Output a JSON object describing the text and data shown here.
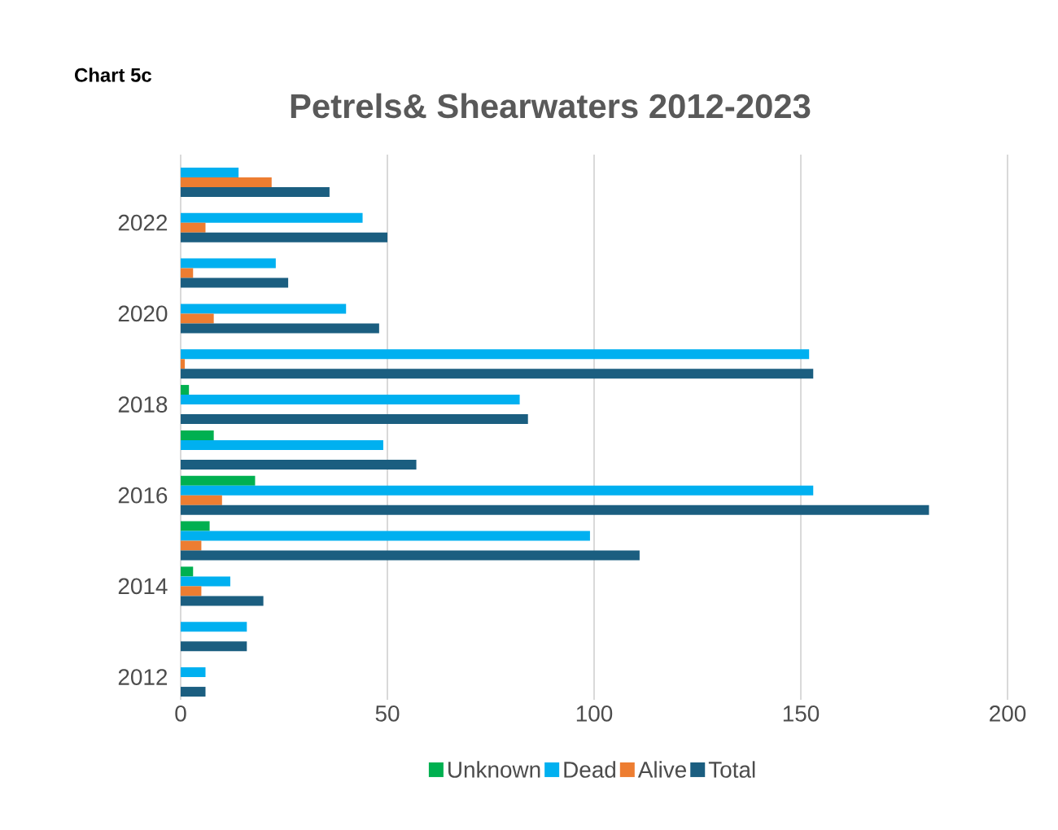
{
  "chart_data": {
    "type": "bar",
    "orientation": "horizontal",
    "title": "Petrels& Shearwaters 2012-2023",
    "annotations": [
      "Chart 5c"
    ],
    "categories": [
      null,
      "2022",
      null,
      "2020",
      null,
      "2018",
      null,
      "2016",
      null,
      "2014",
      null,
      "2012"
    ],
    "series": [
      {
        "name": "Unknown",
        "color": "#00b050",
        "values": [
          0,
          0,
          0,
          0,
          0,
          2,
          8,
          18,
          7,
          3,
          0,
          0
        ]
      },
      {
        "name": "Dead",
        "color": "#00b0f0",
        "values": [
          14,
          44,
          23,
          40,
          152,
          82,
          49,
          153,
          99,
          12,
          16,
          6
        ]
      },
      {
        "name": "Alive",
        "color": "#ed7d31",
        "values": [
          22,
          6,
          3,
          8,
          1,
          0,
          0,
          10,
          5,
          5,
          0,
          0
        ]
      },
      {
        "name": "Total",
        "color": "#1b5e80",
        "values": [
          36,
          50,
          26,
          48,
          153,
          84,
          57,
          181,
          111,
          20,
          16,
          6
        ]
      }
    ],
    "xlim": [
      0,
      200
    ],
    "xticks": [
      0,
      50,
      100,
      150,
      200
    ],
    "grid": "x",
    "legend": "bottom"
  }
}
